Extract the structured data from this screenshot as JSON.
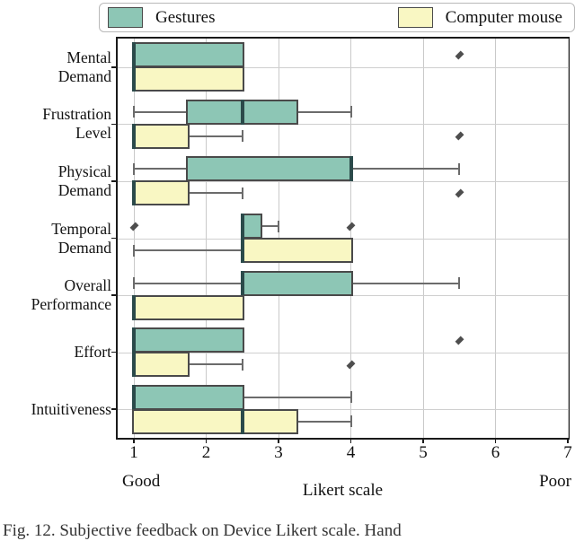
{
  "axis": {
    "xlabel": "Likert scale",
    "left_anchor": "Good",
    "right_anchor": "Poor"
  },
  "caption_partial": "Fig. 12. Subjective feedback on Device Likert scale. Hand",
  "chart_data": {
    "type": "boxplot-horizontal",
    "title": "",
    "xlabel": "Likert scale",
    "xlim": [
      0.776,
      7
    ],
    "xticks": [
      1,
      2,
      3,
      4,
      5,
      6,
      7
    ],
    "grid": true,
    "legend_position": "top",
    "categories": [
      "Mental Demand",
      "Frustration Level",
      "Physical Demand",
      "Temporal Demand",
      "Overall Performance",
      "Effort",
      "Intuitiveness"
    ],
    "categories_display": [
      [
        "Mental",
        "Demand"
      ],
      [
        "Frustration",
        "Level"
      ],
      [
        "Physical",
        "Demand"
      ],
      [
        "Temporal",
        "Demand"
      ],
      [
        "Overall",
        "Performance"
      ],
      [
        "Effort"
      ],
      [
        "Intuitiveness"
      ]
    ],
    "colors": {
      "box_edge": "#4a4a4a",
      "median": "#2b4a4a",
      "whisker": "#6b6b6b",
      "outlier": "#4e4e4e",
      "grid": "#c9c9c9"
    },
    "series": [
      {
        "name": "Gestures",
        "color": "#8dc6b5",
        "boxes": [
          {
            "whislo": 1,
            "q1": 1,
            "med": 1,
            "q3": 2.5,
            "whishi": 2.5,
            "outliers": [
              5.5
            ]
          },
          {
            "whislo": 1,
            "q1": 1.75,
            "med": 2.5,
            "q3": 3.25,
            "whishi": 4,
            "outliers": []
          },
          {
            "whislo": 1,
            "q1": 1.75,
            "med": 4,
            "q3": 4,
            "whishi": 5.5,
            "outliers": []
          },
          {
            "whislo": 2.5,
            "q1": 2.5,
            "med": 2.5,
            "q3": 2.75,
            "whishi": 3,
            "outliers": [
              1,
              4
            ]
          },
          {
            "whislo": 1,
            "q1": 2.5,
            "med": 2.5,
            "q3": 4,
            "whishi": 5.5,
            "outliers": []
          },
          {
            "whislo": 1,
            "q1": 1,
            "med": 1,
            "q3": 2.5,
            "whishi": 2.5,
            "outliers": [
              5.5
            ]
          },
          {
            "whislo": 1,
            "q1": 1,
            "med": 1,
            "q3": 2.5,
            "whishi": 4,
            "outliers": []
          }
        ]
      },
      {
        "name": "Computer mouse",
        "color": "#f9f7c3",
        "boxes": [
          {
            "whislo": 1,
            "q1": 1,
            "med": 1,
            "q3": 2.5,
            "whishi": 2.5,
            "outliers": []
          },
          {
            "whislo": 1,
            "q1": 1,
            "med": 1,
            "q3": 1.75,
            "whishi": 2.5,
            "outliers": [
              5.5
            ]
          },
          {
            "whislo": 1,
            "q1": 1,
            "med": 1,
            "q3": 1.75,
            "whishi": 2.5,
            "outliers": [
              5.5
            ]
          },
          {
            "whislo": 1,
            "q1": 2.5,
            "med": 2.5,
            "q3": 4,
            "whishi": 4,
            "outliers": []
          },
          {
            "whislo": 1,
            "q1": 1,
            "med": 1,
            "q3": 2.5,
            "whishi": 2.5,
            "outliers": []
          },
          {
            "whislo": 1,
            "q1": 1,
            "med": 1,
            "q3": 1.75,
            "whishi": 2.5,
            "outliers": [
              4
            ]
          },
          {
            "whislo": 1,
            "q1": 1,
            "med": 2.5,
            "q3": 3.25,
            "whishi": 4,
            "outliers": []
          }
        ]
      }
    ]
  }
}
